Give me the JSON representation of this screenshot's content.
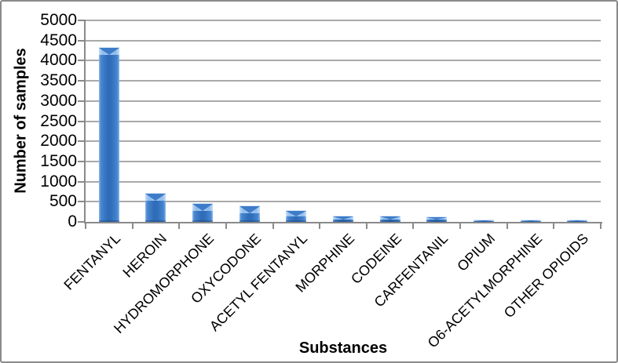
{
  "chart_data": {
    "type": "bar",
    "title": "",
    "xlabel": "Substances",
    "ylabel": "Number of samples",
    "categories": [
      "FENTANYL",
      "HEROIN",
      "HYDROMORPHONE",
      "OXYCODONE",
      "ACETYL FENTANYL",
      "MORPHINE",
      "CODEINE",
      "CARFENTANIL",
      "OPIUM",
      "O6-ACETYLMORPHINE",
      "OTHER OPIOIDS"
    ],
    "values": [
      4330,
      720,
      460,
      410,
      290,
      160,
      150,
      135,
      60,
      55,
      60
    ],
    "ylim": [
      0,
      5000
    ],
    "ytick_step": 500,
    "grid": true,
    "legend": false,
    "bar_color": "#2F6DB9",
    "bar_edge_highlight": "#8FB9E8",
    "bar_cap_color": "#A3C9F1",
    "axis_color": "#8A8A8A",
    "gridline_color": "#A9A9A9",
    "text_color": "#000000",
    "frame_border_color": "#8A8A8A",
    "background_color": "#FFFFFF"
  }
}
